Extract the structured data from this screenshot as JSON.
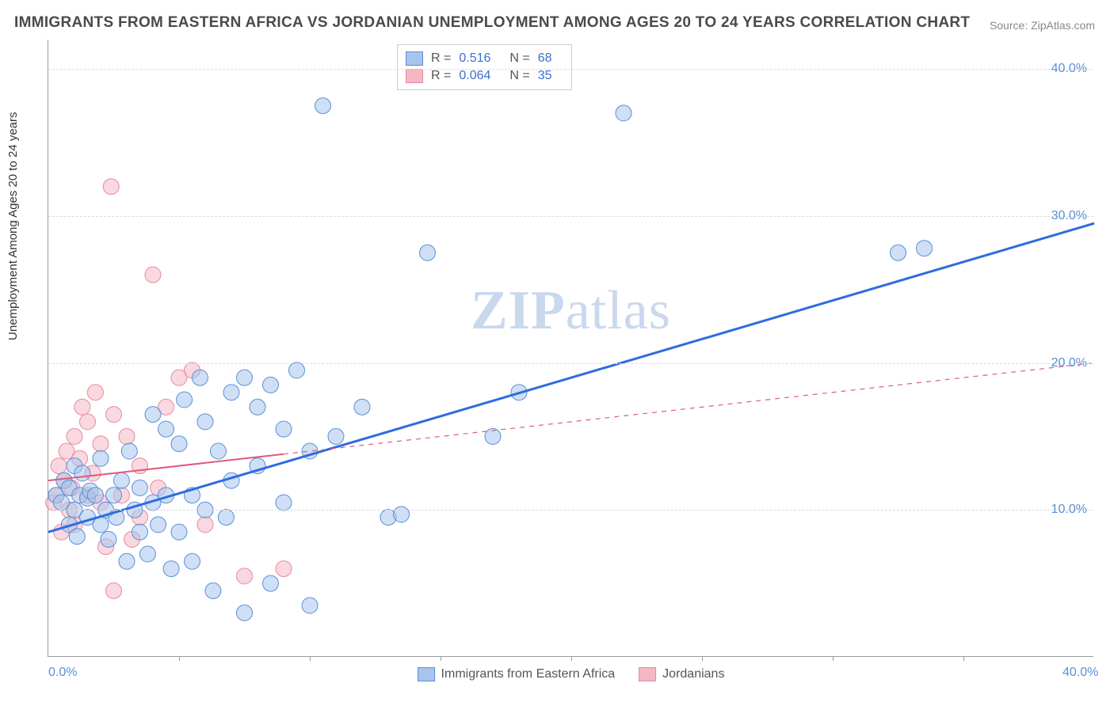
{
  "title": "IMMIGRANTS FROM EASTERN AFRICA VS JORDANIAN UNEMPLOYMENT AMONG AGES 20 TO 24 YEARS CORRELATION CHART",
  "source_label": "Source: ZipAtlas.com",
  "watermark_a": "ZIP",
  "watermark_b": "atlas",
  "ylabel": "Unemployment Among Ages 20 to 24 years",
  "chart": {
    "type": "scatter",
    "xlim": [
      0,
      40
    ],
    "ylim": [
      0,
      42
    ],
    "ytick_values": [
      10,
      20,
      30,
      40
    ],
    "ytick_labels": [
      "10.0%",
      "20.0%",
      "30.0%",
      "40.0%"
    ],
    "xtick_values": [
      0,
      40
    ],
    "xtick_labels": [
      "0.0%",
      "40.0%"
    ],
    "xtick_minor": [
      5,
      10,
      15,
      20,
      25,
      30,
      35
    ],
    "grid_color": "#dddddd",
    "background_color": "#ffffff",
    "marker_radius": 10,
    "marker_opacity": 0.55,
    "y_tick_color": "#5b8fd6",
    "series": [
      {
        "name": "Immigrants from Eastern Africa",
        "color_fill": "#a7c4ec",
        "color_stroke": "#5b8fd6",
        "trend_color": "#2d6cdf",
        "trend_width": 3,
        "trend_dash_after_x": 40,
        "trend": {
          "x0": 0,
          "y0": 8.5,
          "x1": 40,
          "y1": 29.5
        },
        "R": "0.516",
        "N": "68",
        "points": [
          [
            0.3,
            11.0
          ],
          [
            0.5,
            10.5
          ],
          [
            0.6,
            12.0
          ],
          [
            0.8,
            9.0
          ],
          [
            0.8,
            11.5
          ],
          [
            1.0,
            10.0
          ],
          [
            1.0,
            13.0
          ],
          [
            1.1,
            8.2
          ],
          [
            1.2,
            11.0
          ],
          [
            1.3,
            12.5
          ],
          [
            1.5,
            9.5
          ],
          [
            1.5,
            10.8
          ],
          [
            1.6,
            11.3
          ],
          [
            1.8,
            11.0
          ],
          [
            2.0,
            9.0
          ],
          [
            2.0,
            13.5
          ],
          [
            2.2,
            10.0
          ],
          [
            2.3,
            8.0
          ],
          [
            2.5,
            11.0
          ],
          [
            2.6,
            9.5
          ],
          [
            2.8,
            12.0
          ],
          [
            3.0,
            6.5
          ],
          [
            3.1,
            14.0
          ],
          [
            3.3,
            10.0
          ],
          [
            3.5,
            8.5
          ],
          [
            3.5,
            11.5
          ],
          [
            3.8,
            7.0
          ],
          [
            4.0,
            10.5
          ],
          [
            4.0,
            16.5
          ],
          [
            4.2,
            9.0
          ],
          [
            4.5,
            11.0
          ],
          [
            4.5,
            15.5
          ],
          [
            4.7,
            6.0
          ],
          [
            5.0,
            14.5
          ],
          [
            5.0,
            8.5
          ],
          [
            5.2,
            17.5
          ],
          [
            5.5,
            11.0
          ],
          [
            5.5,
            6.5
          ],
          [
            5.8,
            19.0
          ],
          [
            6.0,
            10.0
          ],
          [
            6.0,
            16.0
          ],
          [
            6.3,
            4.5
          ],
          [
            6.5,
            14.0
          ],
          [
            6.8,
            9.5
          ],
          [
            7.0,
            18.0
          ],
          [
            7.0,
            12.0
          ],
          [
            7.5,
            19.0
          ],
          [
            7.5,
            3.0
          ],
          [
            8.0,
            17.0
          ],
          [
            8.0,
            13.0
          ],
          [
            8.5,
            18.5
          ],
          [
            8.5,
            5.0
          ],
          [
            9.0,
            15.5
          ],
          [
            9.0,
            10.5
          ],
          [
            9.5,
            19.5
          ],
          [
            10.0,
            14.0
          ],
          [
            10.0,
            3.5
          ],
          [
            10.5,
            37.5
          ],
          [
            11.0,
            15.0
          ],
          [
            12.0,
            17.0
          ],
          [
            13.0,
            9.5
          ],
          [
            13.5,
            9.7
          ],
          [
            14.5,
            27.5
          ],
          [
            17.0,
            15.0
          ],
          [
            18.0,
            18.0
          ],
          [
            22.0,
            37.0
          ],
          [
            32.5,
            27.5
          ],
          [
            33.5,
            27.8
          ]
        ]
      },
      {
        "name": "Jordanians",
        "color_fill": "#f4b8c5",
        "color_stroke": "#e68aa0",
        "trend_color": "#e05a7a",
        "trend_width": 2,
        "trend_dash_after_x": 9,
        "trend": {
          "x0": 0,
          "y0": 12.0,
          "x1": 40,
          "y1": 20.0
        },
        "R": "0.064",
        "N": "35",
        "points": [
          [
            0.2,
            10.5
          ],
          [
            0.3,
            11.0
          ],
          [
            0.4,
            13.0
          ],
          [
            0.5,
            8.5
          ],
          [
            0.6,
            12.0
          ],
          [
            0.7,
            14.0
          ],
          [
            0.8,
            10.0
          ],
          [
            0.9,
            11.5
          ],
          [
            1.0,
            9.0
          ],
          [
            1.0,
            15.0
          ],
          [
            1.2,
            13.5
          ],
          [
            1.3,
            17.0
          ],
          [
            1.5,
            11.0
          ],
          [
            1.5,
            16.0
          ],
          [
            1.7,
            12.5
          ],
          [
            1.8,
            18.0
          ],
          [
            2.0,
            10.5
          ],
          [
            2.0,
            14.5
          ],
          [
            2.2,
            7.5
          ],
          [
            2.4,
            32.0
          ],
          [
            2.5,
            16.5
          ],
          [
            2.5,
            4.5
          ],
          [
            2.8,
            11.0
          ],
          [
            3.0,
            15.0
          ],
          [
            3.2,
            8.0
          ],
          [
            3.5,
            13.0
          ],
          [
            3.5,
            9.5
          ],
          [
            4.0,
            26.0
          ],
          [
            4.2,
            11.5
          ],
          [
            4.5,
            17.0
          ],
          [
            5.0,
            19.0
          ],
          [
            5.5,
            19.5
          ],
          [
            6.0,
            9.0
          ],
          [
            7.5,
            5.5
          ],
          [
            9.0,
            6.0
          ]
        ]
      }
    ]
  },
  "legend_top": {
    "R_label": "R =",
    "N_label": "N ="
  },
  "legend_bottom": {
    "items": [
      "Immigrants from Eastern Africa",
      "Jordanians"
    ]
  }
}
